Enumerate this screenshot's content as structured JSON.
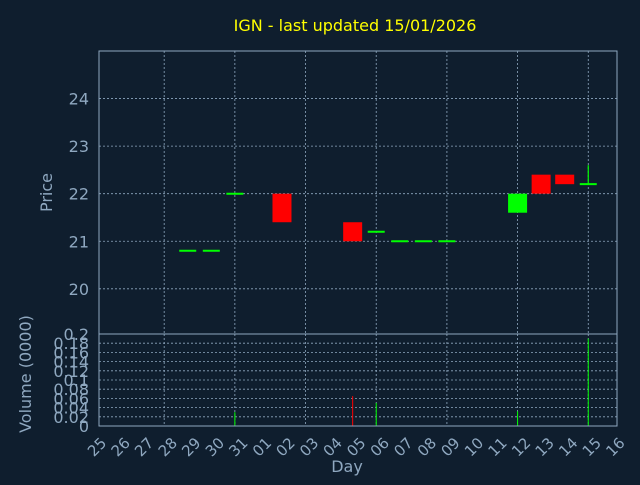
{
  "chart_data": {
    "type": "candlestick",
    "title": "IGN - last updated 15/01/2026",
    "colors": {
      "background": "#0f1e2e",
      "title": "#ffff00",
      "axis_text": "#8fa8c0",
      "frame": "#8fa8c0",
      "grid": "#8fa8c0",
      "up": "#00ff00",
      "down": "#ff0000"
    },
    "price_panel": {
      "ylabel": "Price",
      "ylim": [
        19.05,
        25.0
      ],
      "yticks": [
        "20",
        "21",
        "22",
        "23",
        "24"
      ],
      "grid": true
    },
    "volume_panel": {
      "ylabel": "Volume (0000)",
      "ylim": [
        0,
        0.2
      ],
      "yticks": [
        "0",
        "0.02",
        "0.04",
        "0.06",
        "0.08",
        "0.1",
        "0.12",
        "0.14",
        "0.16",
        "0.18",
        "0.2"
      ],
      "grid": true
    },
    "xlabel": "Day",
    "x_tick_labels": [
      "25",
      "26",
      "27",
      "28",
      "29",
      "30",
      "31",
      "01",
      "02",
      "03",
      "04",
      "05",
      "06",
      "07",
      "08",
      "09",
      "10",
      "11",
      "12",
      "13",
      "14",
      "15",
      "16"
    ],
    "candles": [
      {
        "day": "29",
        "open": 20.8,
        "high": 20.8,
        "low": 20.8,
        "close": 20.8,
        "volume": 0.0
      },
      {
        "day": "30",
        "open": 20.8,
        "high": 20.8,
        "low": 20.8,
        "close": 20.8,
        "volume": 0.0
      },
      {
        "day": "31",
        "open": 22.0,
        "high": 22.0,
        "low": 22.0,
        "close": 22.0,
        "volume": 0.03
      },
      {
        "day": "02",
        "open": 22.0,
        "high": 22.0,
        "low": 21.4,
        "close": 21.4,
        "volume": 0.0
      },
      {
        "day": "05",
        "open": 21.4,
        "high": 21.4,
        "low": 21.0,
        "close": 21.0,
        "volume": 0.065
      },
      {
        "day": "06",
        "open": 21.2,
        "high": 21.2,
        "low": 21.2,
        "close": 21.2,
        "volume": 0.05
      },
      {
        "day": "07",
        "open": 21.0,
        "high": 21.0,
        "low": 21.0,
        "close": 21.0,
        "volume": 0.0
      },
      {
        "day": "08",
        "open": 21.0,
        "high": 21.0,
        "low": 21.0,
        "close": 21.0,
        "volume": 0.0
      },
      {
        "day": "09",
        "open": 21.0,
        "high": 21.0,
        "low": 21.0,
        "close": 21.0,
        "volume": 0.0
      },
      {
        "day": "12",
        "open": 21.6,
        "high": 22.0,
        "low": 21.6,
        "close": 22.0,
        "volume": 0.032
      },
      {
        "day": "13",
        "open": 22.4,
        "high": 22.4,
        "low": 22.0,
        "close": 22.0,
        "volume": 0.0
      },
      {
        "day": "14",
        "open": 22.4,
        "high": 22.4,
        "low": 22.2,
        "close": 22.2,
        "volume": 0.0
      },
      {
        "day": "15",
        "open": 22.2,
        "high": 22.6,
        "low": 22.2,
        "close": 22.2,
        "volume": 0.19
      }
    ]
  }
}
